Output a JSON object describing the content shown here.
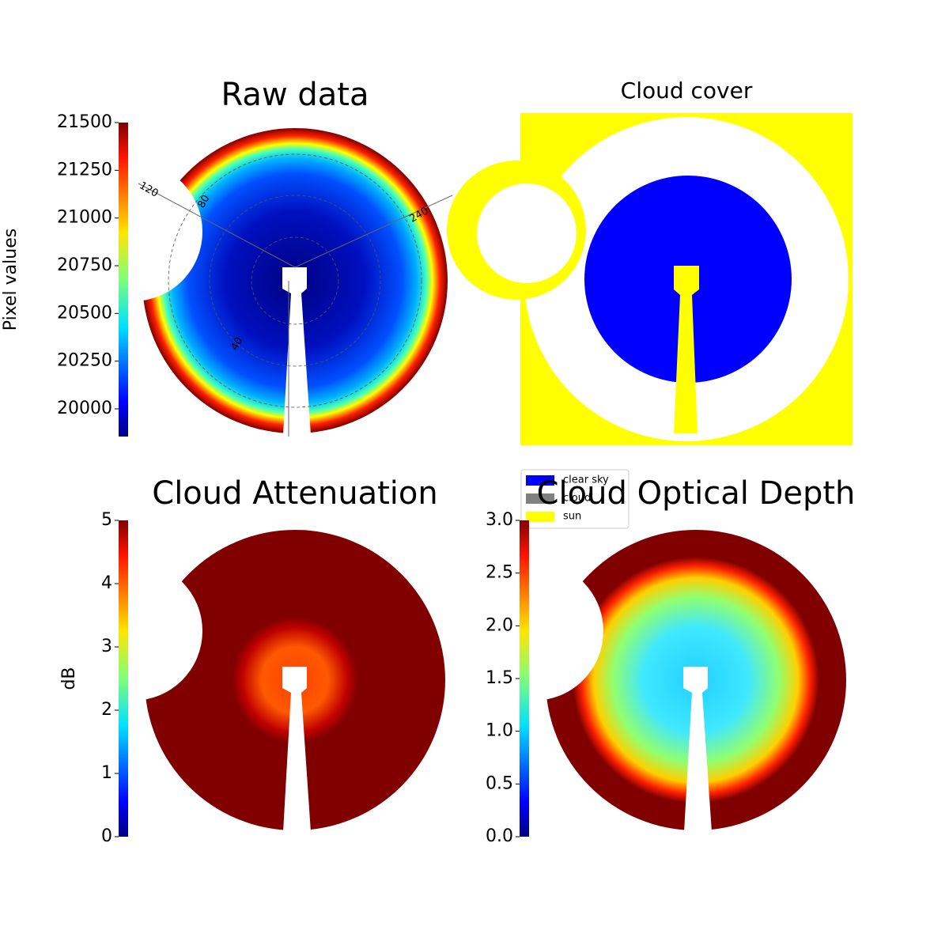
{
  "chart_data": [
    {
      "type": "image",
      "title": "Raw data",
      "colorbar_label": "Pixel values",
      "colormap": "jet",
      "clim": [
        19855,
        21500
      ],
      "cticks": [
        20000,
        20250,
        20500,
        20750,
        21000,
        21250,
        21500
      ],
      "polar_labels": [
        "120",
        "80",
        "240",
        "40"
      ]
    },
    {
      "type": "classification",
      "title": "Cloud cover",
      "series": [
        {
          "name": "clear sky",
          "color": "#0000ff"
        },
        {
          "name": "cloud",
          "color": "#808080"
        },
        {
          "name": "sun",
          "color": "#ffff00"
        }
      ]
    },
    {
      "type": "image",
      "title": "Cloud Attenuation",
      "colorbar_label": "dB",
      "colormap": "jet",
      "clim": [
        0,
        5
      ],
      "cticks": [
        0,
        1,
        2,
        3,
        4,
        5
      ]
    },
    {
      "type": "image",
      "title": "Cloud Optical Depth",
      "colormap": "jet",
      "clim": [
        0,
        3
      ],
      "cticks": [
        {
          "value": 0,
          "label": "0.0"
        },
        {
          "value": 0.5,
          "label": "0.5"
        },
        {
          "value": 1,
          "label": "1.0"
        },
        {
          "value": 1.5,
          "label": "1.5"
        },
        {
          "value": 2,
          "label": "2.0"
        },
        {
          "value": 2.5,
          "label": "2.5"
        },
        {
          "value": 3,
          "label": "3.0"
        }
      ]
    }
  ]
}
